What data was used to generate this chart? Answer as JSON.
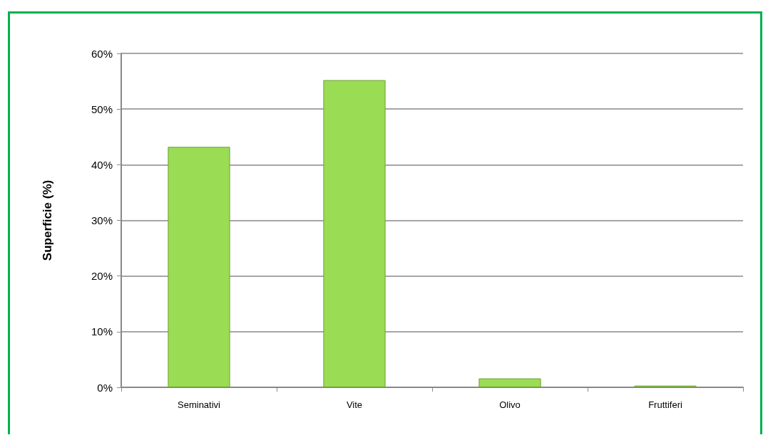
{
  "chart_data": {
    "type": "bar",
    "ylabel": "Superficie (%)",
    "categories": [
      "Seminativi",
      "Vite",
      "Olivo",
      "Fruttiferi"
    ],
    "values": [
      43.2,
      55.2,
      1.6,
      0.3
    ],
    "color": "#9bdc55",
    "ylim": [
      0,
      60
    ],
    "yticks": [
      {
        "value": 0,
        "label": "0%"
      },
      {
        "value": 10,
        "label": "10%"
      },
      {
        "value": 20,
        "label": "20%"
      },
      {
        "value": 30,
        "label": "30%"
      },
      {
        "value": 40,
        "label": "40%"
      },
      {
        "value": 50,
        "label": "50%"
      },
      {
        "value": 60,
        "label": "60%"
      }
    ],
    "grid": "y"
  }
}
